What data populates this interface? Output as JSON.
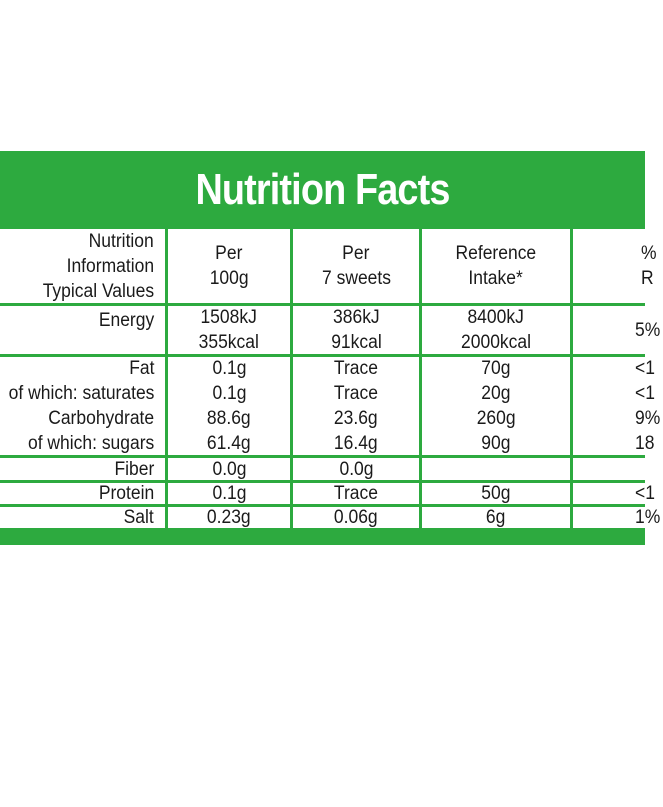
{
  "title": "Nutrition Facts",
  "header": {
    "label": [
      "Nutrition",
      "Information",
      "Typical Values"
    ],
    "per100g": [
      "Per",
      "100g"
    ],
    "perServing": [
      "Per",
      "7 sweets"
    ],
    "reference": [
      "Reference",
      "Intake*"
    ],
    "percent": [
      "%",
      "R"
    ]
  },
  "energy": {
    "label": "Energy",
    "per100g": [
      "1508kJ",
      "355kcal"
    ],
    "perServing": [
      "386kJ",
      "91kcal"
    ],
    "reference": [
      "8400kJ",
      "2000kcal"
    ],
    "percent": "5%"
  },
  "fat_group": {
    "label": [
      "Fat",
      "of which: saturates"
    ],
    "per100g": [
      "0.1g",
      "0.1g"
    ],
    "perServing": [
      "Trace",
      "Trace"
    ],
    "reference": [
      "70g",
      "20g"
    ],
    "percent": [
      "<1",
      "<1"
    ]
  },
  "carb_group": {
    "label": [
      "Carbohydrate",
      "of which: sugars"
    ],
    "per100g": [
      "88.6g",
      "61.4g"
    ],
    "perServing": [
      "23.6g",
      "16.4g"
    ],
    "reference": [
      "260g",
      "90g"
    ],
    "percent": [
      "9%",
      "18"
    ]
  },
  "fiber": {
    "label": "Fiber",
    "per100g": "0.0g",
    "perServing": "0.0g",
    "reference": "",
    "percent": ""
  },
  "protein": {
    "label": "Protein",
    "per100g": "0.1g",
    "perServing": "Trace",
    "reference": "50g",
    "percent": "<1"
  },
  "salt": {
    "label": "Salt",
    "per100g": "0.23g",
    "perServing": "0.06g",
    "reference": "6g",
    "percent": "1%"
  }
}
